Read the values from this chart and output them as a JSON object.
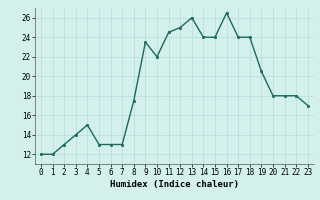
{
  "x": [
    0,
    1,
    2,
    3,
    4,
    5,
    6,
    7,
    8,
    9,
    10,
    11,
    12,
    13,
    14,
    15,
    16,
    17,
    18,
    19,
    20,
    21,
    22,
    23
  ],
  "y": [
    12,
    12,
    13,
    14,
    15,
    13,
    13,
    13,
    17.5,
    23.5,
    22,
    24.5,
    25,
    26,
    24,
    24,
    26.5,
    24,
    24,
    20.5,
    18,
    18,
    18,
    17
  ],
  "line_color": "#1a6b5a",
  "marker_color": "#1a6b5a",
  "bg_color": "#d4f0ec",
  "grid_color": "#b8ddd8",
  "xlabel": "Humidex (Indice chaleur)",
  "ylim": [
    11,
    27
  ],
  "xlim": [
    -0.5,
    23.5
  ],
  "yticks": [
    12,
    14,
    16,
    18,
    20,
    22,
    24,
    26
  ],
  "xtick_labels": [
    "0",
    "1",
    "2",
    "3",
    "4",
    "5",
    "6",
    "7",
    "8",
    "9",
    "10",
    "11",
    "12",
    "13",
    "14",
    "15",
    "16",
    "17",
    "18",
    "19",
    "20",
    "21",
    "22",
    "23"
  ],
  "xlabel_fontsize": 6.5,
  "tick_fontsize": 5.5,
  "line_width": 1.0,
  "marker_size": 2.0
}
